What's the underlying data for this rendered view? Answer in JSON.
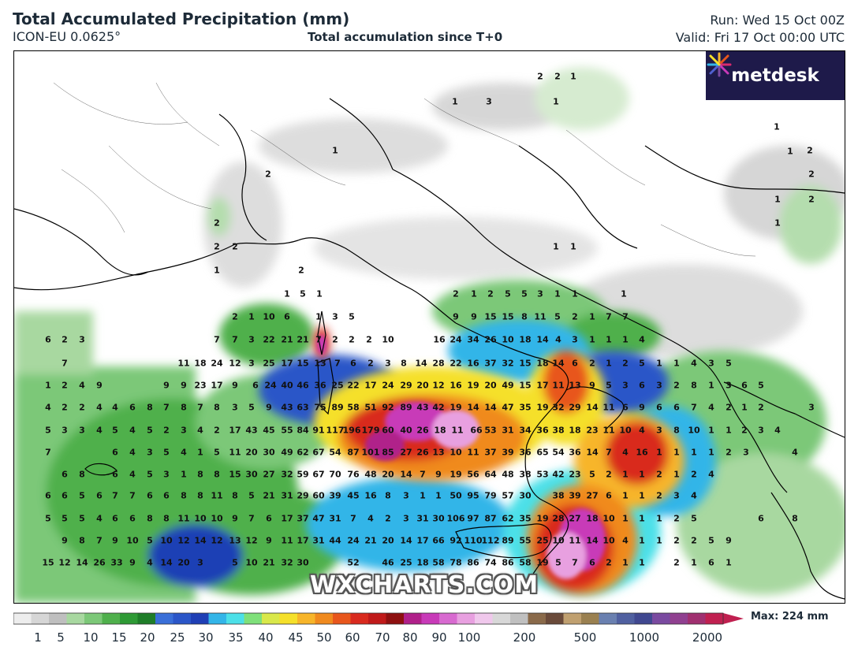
{
  "header": {
    "title": "Total Accumulated Precipitation (mm)",
    "model": "ICON-EU 0.0625°",
    "subtitle": "Total accumulation since T+0",
    "run": "Run: Wed 15 Oct 00Z",
    "valid": "Valid: Fri 17 Oct 00:00 UTC"
  },
  "logo": {
    "text": "metdesk"
  },
  "watermark": "WXCHARTS.COM",
  "legend": {
    "max_label": "Max: 224 mm",
    "ticks": [
      "1",
      "5",
      "10",
      "15",
      "20",
      "25",
      "30",
      "35",
      "40",
      "45",
      "50",
      "60",
      "70",
      "80",
      "90",
      "100",
      "200",
      "500",
      "1000",
      "2000"
    ],
    "colors": [
      "#ededed",
      "#d6d6d6",
      "#bfbfbf",
      "#a8d8a0",
      "#7cc878",
      "#4fb04c",
      "#2e9a35",
      "#1e7d28",
      "#3a6fd8",
      "#2b56c8",
      "#1f3fb5",
      "#33b5e8",
      "#4ce0e8",
      "#7fe07a",
      "#d9e84a",
      "#f5e02a",
      "#f7b52a",
      "#f08a1e",
      "#e8561c",
      "#d92a1e",
      "#c01a1a",
      "#8e1010",
      "#b0208a",
      "#c83ab8",
      "#d86ad0",
      "#e8a0e0",
      "#f0c8ec",
      "#d8d8d8",
      "#c0c0c0",
      "#8a6a4a",
      "#6a4a3a",
      "#c0a070",
      "#9a8050",
      "#6a80b0",
      "#5060a0",
      "#404890",
      "#7a4aa0",
      "#904090",
      "#a03070",
      "#c02050"
    ]
  },
  "accent_colors": {
    "title": "#1d2b38",
    "logo_bg": "#1e1a4a"
  },
  "values": [
    "2",
    "2",
    "1",
    "1",
    "3",
    "1",
    "1",
    "1",
    "2",
    "1",
    "2",
    "2",
    "1",
    "2",
    "2",
    "1",
    "2",
    "2",
    "1",
    "1",
    "1",
    "2",
    "1",
    "5",
    "1",
    "2",
    "1",
    "2",
    "5",
    "5",
    "3",
    "1",
    "1",
    "1",
    "2",
    "1",
    "10",
    "6",
    "1",
    "3",
    "5",
    "9",
    "9",
    "15",
    "15",
    "8",
    "11",
    "5",
    "2",
    "1",
    "7",
    "7",
    "6",
    "2",
    "3",
    "7",
    "7",
    "3",
    "22",
    "21",
    "21",
    "7",
    "2",
    "2",
    "2",
    "10",
    "16",
    "24",
    "34",
    "26",
    "10",
    "18",
    "14",
    "4",
    "3",
    "1",
    "1",
    "1",
    "4",
    "7",
    "11",
    "18",
    "24",
    "12",
    "3",
    "25",
    "17",
    "15",
    "13",
    "7",
    "6",
    "2",
    "3",
    "8",
    "14",
    "28",
    "22",
    "16",
    "37",
    "32",
    "15",
    "18",
    "14",
    "6",
    "2",
    "1",
    "2",
    "5",
    "1",
    "1",
    "4",
    "3",
    "5",
    "1",
    "2",
    "4",
    "9",
    "9",
    "9",
    "23",
    "17",
    "9",
    "6",
    "24",
    "40",
    "46",
    "36",
    "25",
    "22",
    "17",
    "24",
    "29",
    "20",
    "12",
    "16",
    "19",
    "20",
    "49",
    "15",
    "17",
    "11",
    "13",
    "9",
    "5",
    "3",
    "6",
    "3",
    "2",
    "8",
    "1",
    "3",
    "6",
    "5",
    "4",
    "2",
    "2",
    "4",
    "4",
    "6",
    "8",
    "7",
    "8",
    "7",
    "8",
    "3",
    "5",
    "9",
    "43",
    "63",
    "75",
    "89",
    "58",
    "51",
    "92",
    "89",
    "43",
    "42",
    "19",
    "14",
    "14",
    "47",
    "35",
    "19",
    "32",
    "29",
    "14",
    "11",
    "6",
    "9",
    "6",
    "6",
    "7",
    "4",
    "2",
    "1",
    "2",
    "3",
    "5",
    "3",
    "3",
    "4",
    "5",
    "4",
    "5",
    "2",
    "3",
    "4",
    "2",
    "17",
    "43",
    "45",
    "55",
    "84",
    "91",
    "117",
    "196",
    "179",
    "60",
    "40",
    "26",
    "18",
    "11",
    "66",
    "53",
    "31",
    "34",
    "36",
    "38",
    "18",
    "23",
    "11",
    "10",
    "4",
    "3",
    "8",
    "10",
    "1",
    "1",
    "2",
    "3",
    "4",
    "7",
    "6",
    "4",
    "3",
    "5",
    "4",
    "1",
    "5",
    "11",
    "20",
    "30",
    "49",
    "62",
    "67",
    "54",
    "87",
    "101",
    "85",
    "27",
    "26",
    "13",
    "10",
    "11",
    "37",
    "39",
    "36",
    "65",
    "54",
    "36",
    "14",
    "7",
    "4",
    "16",
    "1",
    "1",
    "1",
    "1",
    "2",
    "3",
    "4",
    "6",
    "8",
    "6",
    "4",
    "5",
    "3",
    "1",
    "8",
    "8",
    "15",
    "30",
    "27",
    "32",
    "59",
    "67",
    "70",
    "76",
    "48",
    "20",
    "14",
    "7",
    "9",
    "19",
    "56",
    "64",
    "48",
    "38",
    "53",
    "42",
    "23",
    "5",
    "2",
    "1",
    "1",
    "2",
    "1",
    "2",
    "4",
    "6",
    "6",
    "5",
    "6",
    "7",
    "7",
    "6",
    "6",
    "8",
    "8",
    "11",
    "8",
    "5",
    "21",
    "31",
    "29",
    "60",
    "39",
    "45",
    "16",
    "8",
    "3",
    "1",
    "1",
    "50",
    "95",
    "79",
    "57",
    "30",
    "38",
    "39",
    "27",
    "6",
    "1",
    "1",
    "2",
    "3",
    "4",
    "5",
    "5",
    "5",
    "4",
    "6",
    "6",
    "8",
    "8",
    "11",
    "10",
    "10",
    "9",
    "7",
    "6",
    "17",
    "37",
    "47",
    "31",
    "7",
    "4",
    "2",
    "3",
    "31",
    "30",
    "106",
    "97",
    "87",
    "62",
    "35",
    "19",
    "28",
    "27",
    "18",
    "10",
    "1",
    "1",
    "1",
    "2",
    "5",
    "6",
    "8",
    "9",
    "8",
    "7",
    "9",
    "10",
    "5",
    "10",
    "12",
    "14",
    "12",
    "13",
    "12",
    "9",
    "11",
    "17",
    "31",
    "44",
    "24",
    "21",
    "20",
    "14",
    "17",
    "66",
    "92",
    "110",
    "112",
    "89",
    "55",
    "25",
    "10",
    "11",
    "14",
    "10",
    "4",
    "1",
    "1",
    "2",
    "2",
    "5",
    "9",
    "15",
    "12",
    "14",
    "26",
    "33",
    "9",
    "4",
    "14",
    "20",
    "3",
    "5",
    "10",
    "21",
    "32",
    "30",
    "52",
    "46",
    "25",
    "18",
    "58",
    "78",
    "86",
    "74",
    "86",
    "58",
    "19",
    "5",
    "7",
    "6",
    "2",
    "1",
    "1",
    "2",
    "1",
    "6",
    "1"
  ]
}
